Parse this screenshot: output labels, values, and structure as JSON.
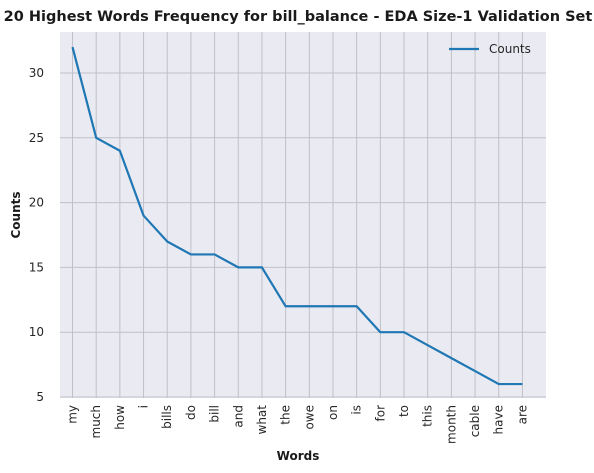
{
  "chart_data": {
    "type": "line",
    "title": "20 Highest Words Frequency for bill_balance - EDA Size-1 Validation Set",
    "xlabel": "Words",
    "ylabel": "Counts",
    "categories": [
      "my",
      "much",
      "how",
      "i",
      "bills",
      "do",
      "bill",
      "and",
      "what",
      "the",
      "owe",
      "on",
      "is",
      "for",
      "to",
      "this",
      "month",
      "cable",
      "have",
      "are"
    ],
    "series": [
      {
        "name": "Counts",
        "values": [
          32,
          25,
          24,
          19,
          17,
          16,
          16,
          15,
          15,
          12,
          12,
          12,
          12,
          10,
          10,
          9,
          8,
          7,
          6,
          6
        ]
      }
    ],
    "ylim": [
      5,
      33
    ],
    "yticks": [
      5,
      10,
      15,
      20,
      25,
      30
    ],
    "grid": true,
    "legend_position": "top-right",
    "colors": {
      "line": "#1f77b4",
      "plot_bg": "#eaeaf2",
      "grid": "#c0c0c8"
    }
  }
}
